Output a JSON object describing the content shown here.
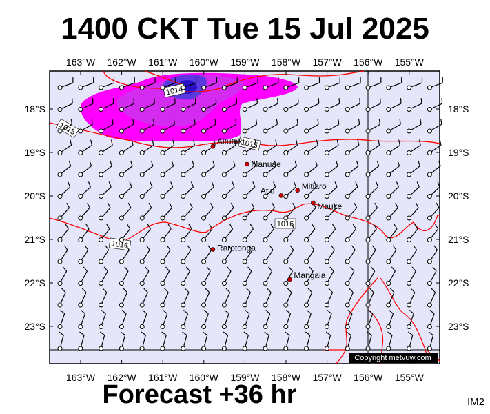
{
  "header": {
    "title": "1400 CKT Tue 15 Jul 2025"
  },
  "footer": {
    "forecast": "Forecast +36 hr",
    "code": "IM2"
  },
  "map": {
    "lon_labels": [
      "163°W",
      "162°W",
      "161°W",
      "160°W",
      "159°W",
      "158°W",
      "157°W",
      "156°W",
      "155°W"
    ],
    "lat_labels": [
      "18°S",
      "19°S",
      "20°S",
      "21°S",
      "22°S",
      "23°S"
    ],
    "copyright": "Copyright metvuw.com",
    "places": [
      {
        "name": "Aitutaki",
        "lon": -159.78,
        "lat": -18.86
      },
      {
        "name": "Manuae",
        "lon": -158.95,
        "lat": -19.27
      },
      {
        "name": "Atiu",
        "lon": -158.12,
        "lat": -19.99
      },
      {
        "name": "Mitiaro",
        "lon": -157.72,
        "lat": -19.87
      },
      {
        "name": "Mauke",
        "lon": -157.34,
        "lat": -20.16
      },
      {
        "name": "Rarotonga",
        "lon": -159.78,
        "lat": -21.23
      },
      {
        "name": "Mangaia",
        "lon": -157.91,
        "lat": -21.92
      }
    ],
    "isobar_labels": [
      "1014",
      "1015",
      "1015",
      "1016",
      "1016"
    ],
    "colors": {
      "background": "#e6e6fa",
      "isobar": "#ff0000",
      "rain_light": "#ff00ff",
      "rain_mid": "#b04cf0",
      "rain_heavy": "#3a20d8"
    }
  }
}
